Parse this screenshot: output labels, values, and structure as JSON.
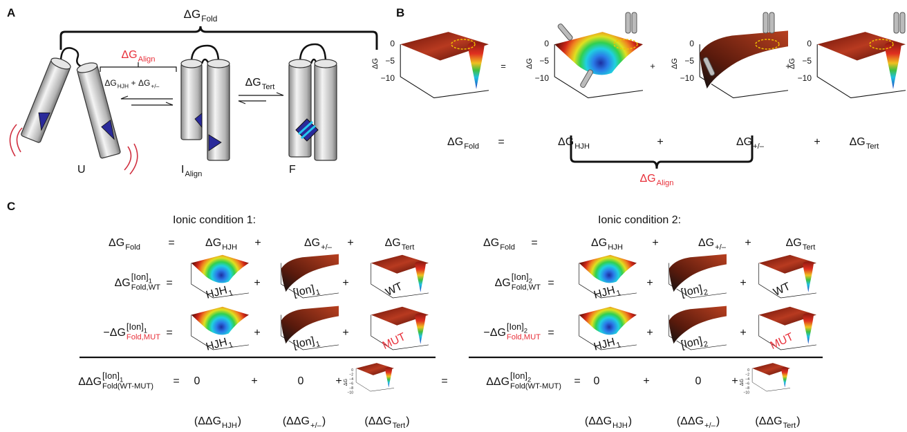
{
  "panel_a": {
    "label": "A",
    "fold": {
      "base": "ΔG",
      "sub": "Fold"
    },
    "align": {
      "base": "ΔG",
      "sub": "Align"
    },
    "hjh": {
      "base": "ΔG",
      "sub": "HJH"
    },
    "plus": "+",
    "charge": {
      "base": "ΔG",
      "sub": "+/–"
    },
    "tert": {
      "base": "ΔG",
      "sub": "Tert"
    },
    "states": [
      "U",
      {
        "base": "I",
        "sub": "Align"
      },
      "F"
    ]
  },
  "panel_b": {
    "label": "B",
    "plots": [
      {
        "axis_label": "ΔG",
        "ticks": [
          "0",
          "−5",
          "−10"
        ]
      },
      {
        "axis_label": "ΔG",
        "ticks": [
          "0",
          "−5",
          "−10"
        ]
      },
      {
        "axis_label": "ΔG",
        "ticks": [
          "0",
          "−5",
          "−10"
        ]
      },
      {
        "axis_label": "ΔG",
        "ticks": [
          "0",
          "−5",
          "−10"
        ]
      }
    ],
    "operators": [
      "=",
      "+",
      "+"
    ],
    "equation": [
      {
        "base": "ΔG",
        "sub": "Fold"
      },
      "=",
      {
        "base": "ΔG",
        "sub": "HJH"
      },
      "+",
      {
        "base": "ΔG",
        "sub": "+/–"
      },
      "+",
      {
        "base": "ΔG",
        "sub": "Tert"
      }
    ],
    "align": {
      "base": "ΔG",
      "sub": "Align"
    }
  },
  "panel_c": {
    "label": "C",
    "between": "=",
    "conditions": [
      {
        "title": "Ionic condition 1:",
        "color": "#a9c43c",
        "header": [
          {
            "base": "ΔG",
            "sub": "Fold"
          },
          "=",
          {
            "base": "ΔG",
            "sub": "HJH"
          },
          "+",
          {
            "base": "ΔG",
            "sub": "+/–"
          },
          "+",
          {
            "base": "ΔG",
            "sub": "Tert"
          }
        ],
        "wt_row": {
          "term": {
            "base": "ΔG",
            "sup": "[Ion]",
            "sup_sub": "1",
            "sub": "Fold,WT"
          },
          "ops": [
            "=",
            "+",
            "+"
          ],
          "plot_labels": [
            {
              "base": "HJH",
              "sub": "1"
            },
            {
              "base": "[Ion]",
              "sub": "1"
            },
            "WT"
          ]
        },
        "mut_row": {
          "term": {
            "base": "−ΔG",
            "sup": "[Ion]",
            "sup_sub": "1",
            "sub": "Fold,MUT"
          },
          "ops": [
            "=",
            "+",
            "+"
          ],
          "plot_labels": [
            {
              "base": "HJH",
              "sub": "1"
            },
            {
              "base": "[Ion]",
              "sub": "1"
            },
            "MUT"
          ]
        },
        "diff_row": {
          "term": {
            "base": "ΔΔG",
            "sup": "[Ion]",
            "sup_sub": "1",
            "sub": "Fold(WT-MUT)"
          },
          "items": [
            "=",
            "0",
            "+",
            "0",
            "+"
          ],
          "plot": {
            "axis_label": "ΔG",
            "ticks": [
              "0",
              "−2",
              "−4",
              "−6",
              "−8",
              "−10"
            ]
          }
        },
        "notes": [
          {
            "base": "(ΔΔG",
            "sub": "HJH",
            "post": ")"
          },
          {
            "base": "(ΔΔG",
            "sub": "+/–",
            "post": ")"
          },
          {
            "base": "(ΔΔG",
            "sub": "Tert",
            "post": ")"
          }
        ]
      },
      {
        "title": "Ionic condition 2:",
        "color": "#1d7a3a",
        "header": [
          {
            "base": "ΔG",
            "sub": "Fold"
          },
          "=",
          {
            "base": "ΔG",
            "sub": "HJH"
          },
          "+",
          {
            "base": "ΔG",
            "sub": "+/–"
          },
          "+",
          {
            "base": "ΔG",
            "sub": "Tert"
          }
        ],
        "wt_row": {
          "term": {
            "base": "ΔG",
            "sup": "[Ion]",
            "sup_sub": "2",
            "sub": "Fold,WT"
          },
          "ops": [
            "=",
            "+",
            "+"
          ],
          "plot_labels": [
            {
              "base": "HJH",
              "sub": "1"
            },
            {
              "base": "[Ion]",
              "sub": "2"
            },
            "WT"
          ]
        },
        "mut_row": {
          "term": {
            "base": "−ΔG",
            "sup": "[Ion]",
            "sup_sub": "2",
            "sub": "Fold,MUT"
          },
          "ops": [
            "=",
            "+",
            "+"
          ],
          "plot_labels": [
            {
              "base": "HJH",
              "sub": "1"
            },
            {
              "base": "[Ion]",
              "sub": "2"
            },
            "MUT"
          ]
        },
        "diff_row": {
          "term": {
            "base": "ΔΔG",
            "sup": "[Ion]",
            "sup_sub": "2",
            "sub": "Fold(WT-MUT)"
          },
          "items": [
            "=",
            "0",
            "+",
            "0",
            "+"
          ],
          "plot": {
            "axis_label": "ΔG",
            "ticks": [
              "0",
              "−2",
              "−4",
              "−6",
              "−8",
              "−10"
            ]
          }
        },
        "notes": [
          {
            "base": "(ΔΔG",
            "sub": "HJH",
            "post": ")"
          },
          {
            "base": "(ΔΔG",
            "sub": "+/–",
            "post": ")"
          },
          {
            "base": "(ΔΔG",
            "sub": "Tert",
            "post": ")"
          }
        ]
      }
    ]
  }
}
